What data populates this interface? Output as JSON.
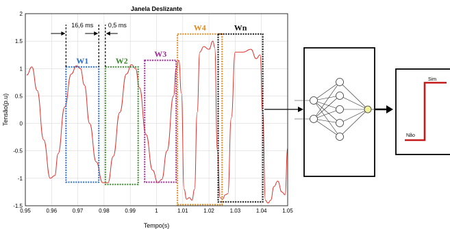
{
  "chart_data": {
    "type": "line",
    "title": "Janela Deslizante",
    "xlabel": "Tempo(s)",
    "ylabel": "Tensão(p.u)",
    "xlim": [
      0.95,
      1.05
    ],
    "ylim": [
      -1.5,
      2
    ],
    "xticks": [
      "0.95",
      "0.96",
      "0.97",
      "0.98",
      "0.99",
      "1",
      "1.01",
      "1.02",
      "1.03",
      "1.04",
      "1.05"
    ],
    "yticks": [
      "-1.5",
      "-1",
      "-0.5",
      "0",
      "0.5",
      "1",
      "1.5",
      "2"
    ],
    "grid": true,
    "series_color": "#e0312b",
    "series": [
      {
        "x": [
          0.9505,
          0.9525,
          0.9545,
          0.957,
          0.9595,
          0.9612,
          0.9625,
          0.965,
          0.9675,
          0.9695,
          0.971,
          0.9725,
          0.9745,
          0.977,
          0.9795,
          0.9815,
          0.9835,
          0.986,
          0.9885,
          0.9905,
          0.992,
          0.9935,
          0.996,
          0.9985,
          1.0005,
          1.002,
          1.004,
          1.0065,
          1.0075,
          1.0085,
          1.0095,
          1.0105,
          1.0115,
          1.0125,
          1.0135,
          1.0145,
          1.0155,
          1.0165,
          1.018,
          1.02,
          1.0215,
          1.0222,
          1.0232,
          1.0242,
          1.0252,
          1.0262,
          1.0272,
          1.0285,
          1.03,
          1.033,
          1.036,
          1.038,
          1.0395,
          1.0405,
          1.0415,
          1.0425,
          1.0435,
          1.0448,
          1.0462,
          1.0478,
          1.049,
          1.05
        ],
        "y": [
          0.88,
          1.03,
          0.6,
          -0.3,
          -1.0,
          -0.95,
          -0.55,
          0.3,
          0.9,
          1.05,
          1.0,
          0.7,
          0.0,
          -0.7,
          -1.08,
          -1.08,
          -0.6,
          0.2,
          0.9,
          1.07,
          1.0,
          0.65,
          -0.2,
          -0.85,
          -1.08,
          -1.02,
          -0.5,
          0.5,
          1.0,
          1.15,
          0.55,
          -1.2,
          -1.38,
          -1.35,
          -1.4,
          -1.2,
          0.2,
          1.3,
          1.4,
          1.35,
          1.5,
          1.38,
          -0.5,
          -1.35,
          -1.38,
          -1.3,
          -1.28,
          0.1,
          1.3,
          1.3,
          1.35,
          1.18,
          1.25,
          0.2,
          -1.4,
          -1.45,
          -1.4,
          -1.15,
          -1.05,
          -1.25,
          -1.3,
          -0.45
        ]
      }
    ],
    "windows": [
      {
        "label": "W1",
        "color": "#2b6cc4",
        "x0": 0.9655,
        "x1": 0.978,
        "y0": 1.03,
        "y1": -1.07
      },
      {
        "label": "W2",
        "color": "#3c8a2e",
        "x0": 0.9805,
        "x1": 0.993,
        "y0": 1.03,
        "y1": -1.11
      },
      {
        "label": "W3",
        "color": "#a0289b",
        "x0": 0.9955,
        "x1": 1.0075,
        "y0": 1.15,
        "y1": -1.07
      },
      {
        "label": "W4",
        "color": "#e08a20",
        "x0": 1.008,
        "x1": 1.025,
        "y0": 1.63,
        "y1": -1.48
      },
      {
        "label": "Wn",
        "color": "#111111",
        "x0": 1.0235,
        "x1": 1.0405,
        "y0": 1.63,
        "y1": -1.43
      }
    ],
    "annotations": [
      {
        "text": "16,6 ms",
        "x0": 0.9655,
        "x1": 0.978
      },
      {
        "text": "0,5 ms",
        "x0": 0.978,
        "x1": 0.9805
      }
    ]
  },
  "step": {
    "low_label": "Não",
    "high_label": "Sim",
    "line_color": "#c41a1a"
  }
}
